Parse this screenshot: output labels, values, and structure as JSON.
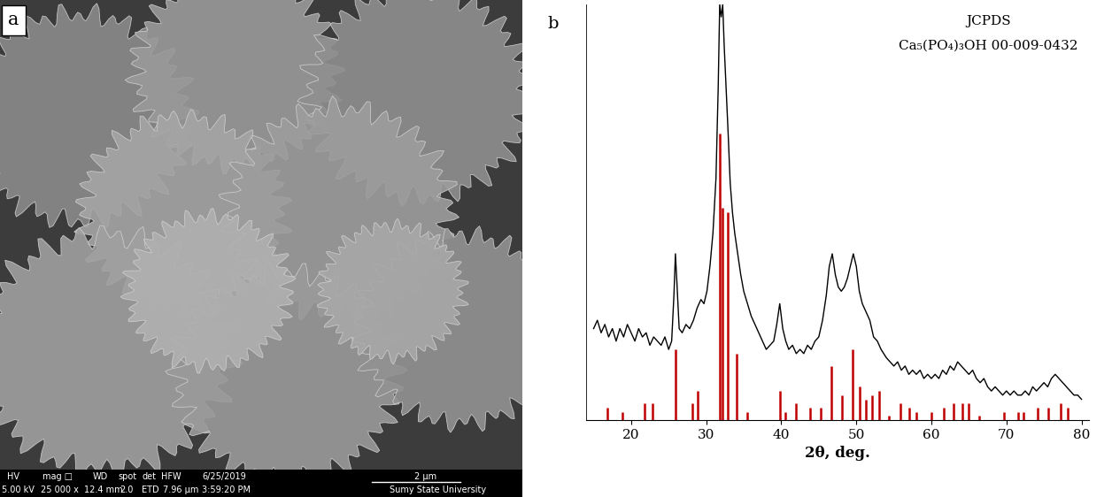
{
  "chart_data": {
    "type": "line",
    "panel_label": "b",
    "x_label": "2θ, deg.",
    "annotations": [
      "JCPDS",
      "Ca₅(PO₄)₃OH 00-009-0432"
    ],
    "xlim": [
      14,
      81
    ],
    "xticks": [
      20,
      30,
      40,
      50,
      60,
      70,
      80
    ],
    "ylim": [
      0,
      100
    ],
    "yticks": [],
    "tick_labels": "x",
    "grid": false,
    "series": [
      {
        "type": "line",
        "color": "#000000",
        "x": [
          15,
          15.5,
          16,
          16.5,
          17,
          17.5,
          18,
          18.5,
          19,
          19.5,
          20,
          20.5,
          21,
          21.5,
          22,
          22.5,
          23,
          23.5,
          24,
          24.5,
          25,
          25.4,
          25.7,
          25.9,
          26.1,
          26.4,
          26.8,
          27.3,
          27.8,
          28.3,
          28.8,
          29.3,
          29.7,
          30.1,
          30.5,
          30.9,
          31.3,
          31.6,
          31.8,
          32.0,
          32.2,
          32.4,
          32.6,
          32.9,
          33.2,
          33.5,
          33.8,
          34.2,
          34.6,
          35.0,
          35.5,
          36,
          36.5,
          37,
          37.5,
          38,
          38.5,
          39,
          39.4,
          39.8,
          40.2,
          40.6,
          41,
          41.5,
          42,
          42.5,
          43,
          43.5,
          44,
          44.5,
          45,
          45.5,
          46,
          46.4,
          46.8,
          47.2,
          47.6,
          48,
          48.4,
          48.8,
          49.2,
          49.6,
          50,
          50.4,
          50.8,
          51.3,
          51.8,
          52.3,
          52.8,
          53.3,
          54,
          54.5,
          55,
          55.5,
          56,
          56.5,
          57,
          57.5,
          58,
          58.5,
          59,
          59.5,
          60,
          60.5,
          61,
          61.5,
          62,
          62.5,
          63,
          63.5,
          64,
          64.5,
          65,
          65.5,
          66,
          66.5,
          67,
          67.5,
          68,
          68.5,
          69,
          69.5,
          70,
          70.5,
          71,
          71.5,
          72,
          72.5,
          73,
          73.5,
          74,
          74.5,
          75,
          75.5,
          76,
          76.5,
          77,
          77.5,
          78,
          78.5,
          79,
          79.5,
          80
        ],
        "values": [
          22,
          24,
          21,
          23,
          20,
          22,
          19,
          22,
          20,
          23,
          21,
          19,
          22,
          20,
          21,
          18,
          20,
          19,
          18,
          20,
          17,
          19,
          30,
          40,
          33,
          22,
          21,
          23,
          22,
          24,
          27,
          29,
          28,
          31,
          37,
          45,
          58,
          80,
          100,
          97,
          100,
          90,
          82,
          70,
          57,
          50,
          45,
          40,
          35,
          31,
          28,
          25,
          23,
          21,
          19,
          17,
          18,
          19,
          23,
          28,
          22,
          19,
          17,
          18,
          16,
          17,
          16,
          18,
          17,
          19,
          20,
          24,
          30,
          37,
          40,
          35,
          32,
          31,
          32,
          34,
          37,
          40,
          37,
          31,
          28,
          26,
          24,
          20,
          19,
          17,
          15,
          14,
          13,
          14,
          12,
          13,
          11,
          12,
          11,
          12,
          10,
          11,
          10,
          11,
          10,
          12,
          11,
          13,
          12,
          14,
          13,
          12,
          11,
          12,
          10,
          9,
          10,
          8,
          7,
          8,
          7,
          6,
          7,
          6,
          7,
          6,
          6,
          7,
          6,
          8,
          7,
          8,
          9,
          8,
          10,
          11,
          10,
          9,
          8,
          7,
          6,
          6,
          5
        ]
      },
      {
        "type": "stem",
        "color": "#c00000",
        "x": [
          16.8,
          18.8,
          21.8,
          22.9,
          25.9,
          28.1,
          28.9,
          31.8,
          32.2,
          32.9,
          34.0,
          35.5,
          39.8,
          40.5,
          42.0,
          43.8,
          45.3,
          46.7,
          48.1,
          49.5,
          50.5,
          51.3,
          52.1,
          53.1,
          54.4,
          55.9,
          57.1,
          58.0,
          60.0,
          61.7,
          63.0,
          64.1,
          65.0,
          66.4,
          69.7,
          71.6,
          72.3,
          74.1,
          75.6,
          77.2,
          78.2
        ],
        "values": [
          3,
          2,
          4,
          4,
          17,
          4,
          7,
          69,
          51,
          50,
          16,
          2,
          7,
          2,
          4,
          3,
          3,
          13,
          6,
          17,
          8,
          5,
          6,
          7,
          1,
          4,
          3,
          2,
          2,
          3,
          4,
          4,
          4,
          1,
          2,
          2,
          2,
          3,
          3,
          4,
          3
        ]
      }
    ]
  },
  "image_panel": {
    "label": "a",
    "info_bar": {
      "rows": [
        [
          "HV",
          "mag □",
          "WD",
          "spot",
          "det",
          "HFW",
          "6/25/2019",
          "2 µm"
        ],
        [
          "5.00 kV",
          "25 000 x",
          "12.4 mm",
          "2.0",
          "ETD",
          "7.96 µm",
          "3:59:20 PM",
          "Sumy State University"
        ]
      ]
    }
  }
}
